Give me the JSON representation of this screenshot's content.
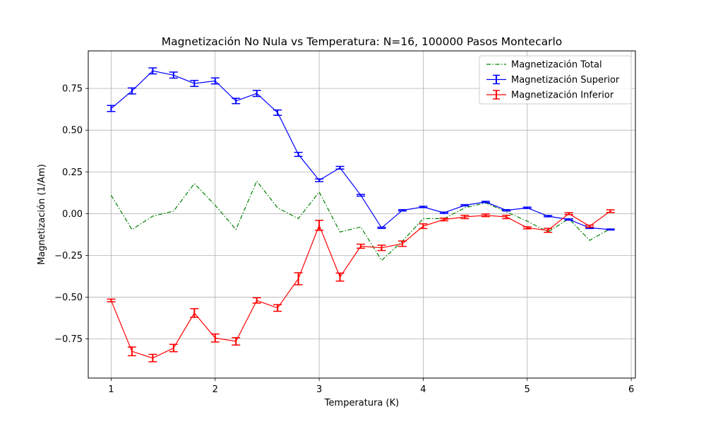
{
  "chart_data": {
    "type": "line",
    "title": "Magnetización No Nula vs Temperatura: N=16, 100000 Pasos Montecarlo",
    "xlabel": "Temperatura (K)",
    "ylabel": "Magnetización (1/Am)",
    "xlim": [
      0.78,
      6.04
    ],
    "ylim": [
      -0.985,
      0.975
    ],
    "xticks": [
      1,
      2,
      3,
      4,
      5,
      6
    ],
    "xtick_labels": [
      "1",
      "2",
      "3",
      "4",
      "5",
      "6"
    ],
    "yticks": [
      -0.75,
      -0.5,
      -0.25,
      0.0,
      0.25,
      0.5,
      0.75
    ],
    "ytick_labels": [
      "−0.75",
      "−0.50",
      "−0.25",
      "0.00",
      "0.25",
      "0.50",
      "0.75"
    ],
    "grid": true,
    "legend_position": "top-right",
    "x": [
      1.0,
      1.2,
      1.4,
      1.6,
      1.8,
      2.0,
      2.2,
      2.4,
      2.6,
      2.8,
      3.0,
      3.2,
      3.4,
      3.6,
      3.8,
      4.0,
      4.2,
      4.4,
      4.6,
      4.8,
      5.0,
      5.2,
      5.4,
      5.6,
      5.8
    ],
    "series": [
      {
        "name": "Magnetización Total",
        "color": "#008000",
        "style": "dashdot",
        "errorbars": false,
        "values": [
          0.11,
          -0.095,
          -0.015,
          0.015,
          0.18,
          0.05,
          -0.095,
          0.195,
          0.035,
          -0.03,
          0.13,
          -0.11,
          -0.08,
          -0.28,
          -0.165,
          -0.03,
          -0.03,
          0.035,
          0.065,
          0.01,
          -0.045,
          -0.11,
          -0.03,
          -0.16,
          -0.09
        ]
      },
      {
        "name": "Magnetización Superior",
        "color": "#0000ff",
        "style": "solid",
        "errorbars": true,
        "values": [
          0.63,
          0.735,
          0.855,
          0.83,
          0.78,
          0.795,
          0.675,
          0.72,
          0.605,
          0.355,
          0.2,
          0.275,
          0.11,
          -0.085,
          0.02,
          0.04,
          0.005,
          0.05,
          0.07,
          0.02,
          0.035,
          -0.015,
          -0.035,
          -0.085,
          -0.095
        ],
        "errors": [
          0.018,
          0.018,
          0.018,
          0.018,
          0.018,
          0.018,
          0.016,
          0.018,
          0.016,
          0.012,
          0.008,
          0.008,
          0.005,
          0.004,
          0.004,
          0.004,
          0.004,
          0.004,
          0.004,
          0.004,
          0.004,
          0.004,
          0.004,
          0.004,
          0.003
        ]
      },
      {
        "name": "Magnetización Inferior",
        "color": "#ff0000",
        "style": "solid",
        "errorbars": true,
        "values": [
          -0.52,
          -0.825,
          -0.865,
          -0.805,
          -0.595,
          -0.745,
          -0.765,
          -0.52,
          -0.565,
          -0.39,
          -0.07,
          -0.38,
          -0.195,
          -0.205,
          -0.18,
          -0.075,
          -0.035,
          -0.02,
          -0.01,
          -0.02,
          -0.085,
          -0.1,
          0.0,
          -0.075,
          0.015
        ],
        "errors": [
          0.008,
          0.026,
          0.022,
          0.022,
          0.026,
          0.024,
          0.022,
          0.016,
          0.02,
          0.036,
          0.03,
          0.024,
          0.012,
          0.016,
          0.016,
          0.014,
          0.008,
          0.01,
          0.008,
          0.01,
          0.006,
          0.012,
          0.006,
          0.006,
          0.008
        ]
      }
    ]
  }
}
